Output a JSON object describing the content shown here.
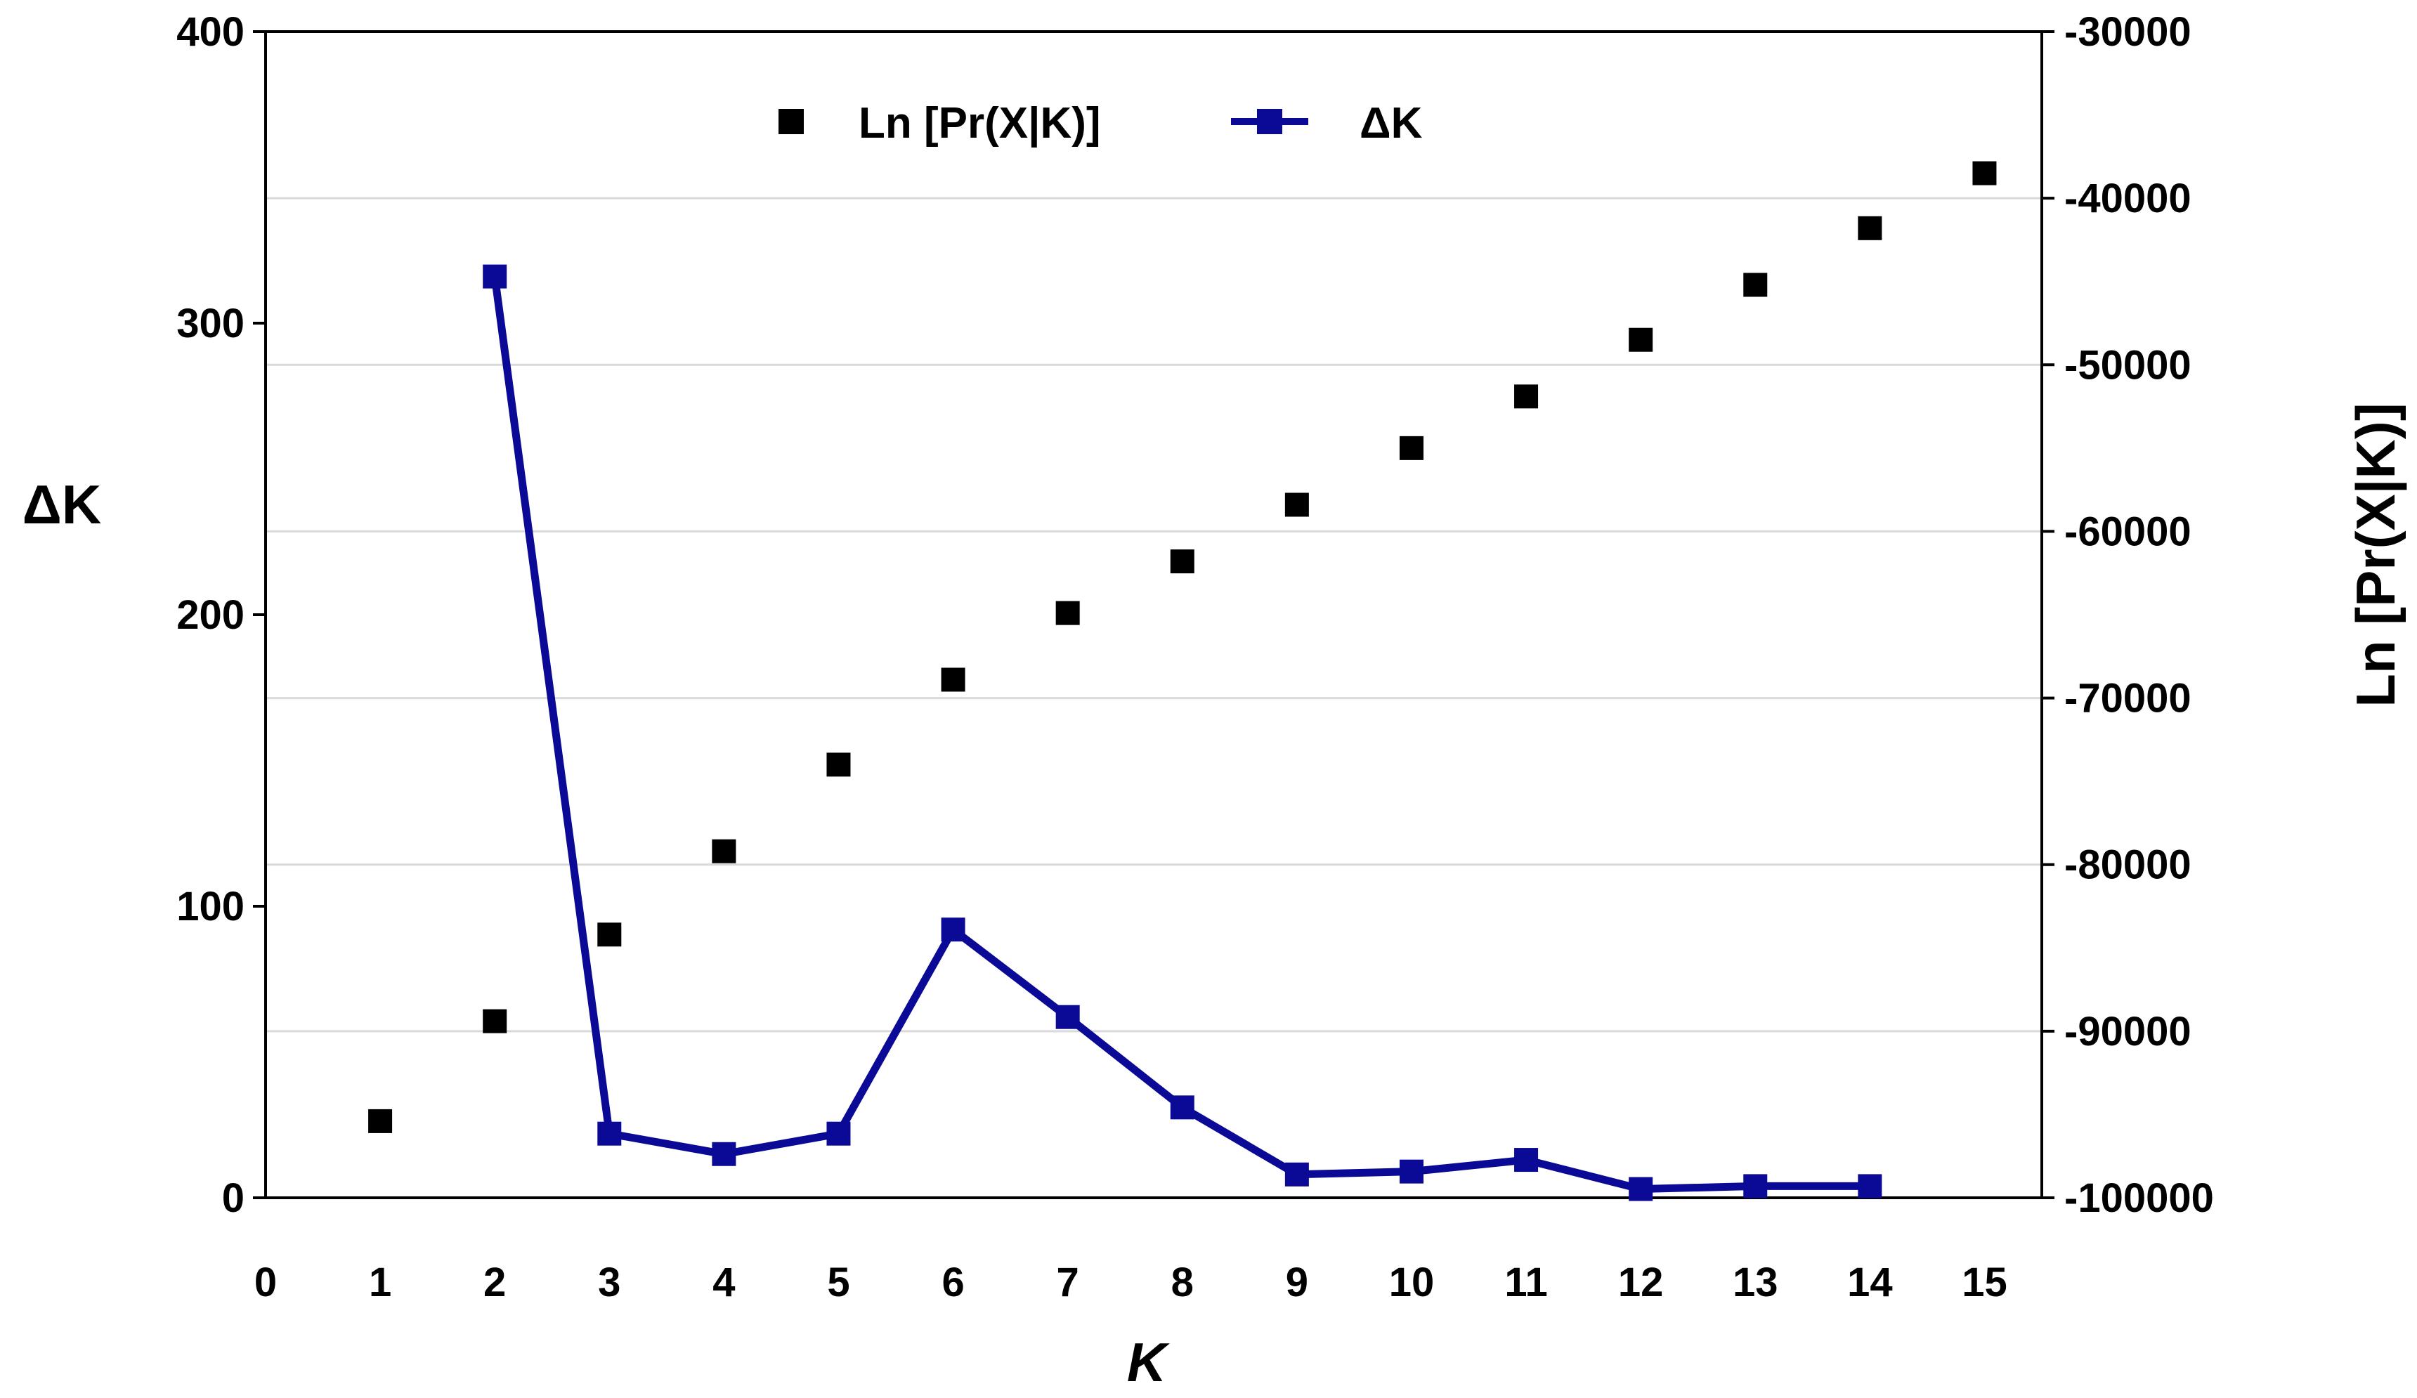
{
  "chart_data": {
    "type": "line",
    "x_ticks": [
      "0",
      "1",
      "2",
      "3",
      "4",
      "5",
      "6",
      "7",
      "8",
      "9",
      "10",
      "11",
      "12",
      "13",
      "14",
      "15"
    ],
    "xlim": [
      0,
      15.5
    ],
    "xlabel": "K",
    "ylabel_left": "ΔK",
    "ylabel_right": "Ln [Pr(X|K)]",
    "ylim_left": [
      0,
      400
    ],
    "ylim_right": [
      -100000,
      -30000
    ],
    "y_ticks_left": [
      "0",
      "100",
      "200",
      "300",
      "400"
    ],
    "y_ticks_right": [
      "-100000",
      "-90000",
      "-80000",
      "-70000",
      "-60000",
      "-50000",
      "-40000",
      "-30000"
    ],
    "grid": true,
    "legend_position": "top-center",
    "series": [
      {
        "name": "Ln [Pr(X|K)]",
        "type": "scatter",
        "axis": "right",
        "color": "#000000",
        "x": [
          1,
          2,
          3,
          4,
          5,
          6,
          7,
          8,
          9,
          10,
          11,
          12,
          13,
          14,
          15
        ],
        "values": [
          -95400,
          -89400,
          -84200,
          -79200,
          -74000,
          -68900,
          -64900,
          -61800,
          -58400,
          -55000,
          -51900,
          -48500,
          -45200,
          -41800,
          -38500
        ]
      },
      {
        "name": "ΔK",
        "type": "line",
        "axis": "left",
        "color": "#0a0a96",
        "x": [
          2,
          3,
          4,
          5,
          6,
          7,
          8,
          9,
          10,
          11,
          12,
          13,
          14
        ],
        "values": [
          316,
          22,
          15,
          22,
          92,
          62,
          31,
          8,
          9,
          13,
          3,
          4,
          4
        ]
      }
    ]
  }
}
